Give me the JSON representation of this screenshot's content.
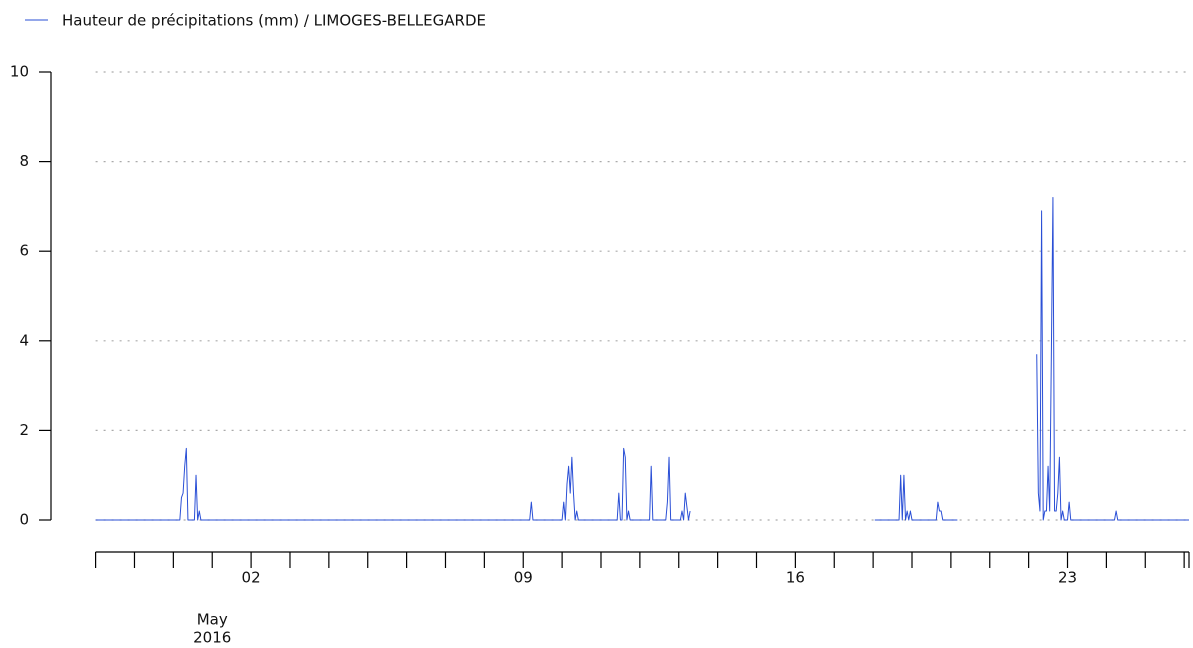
{
  "chart_data": {
    "type": "line",
    "series": [
      {
        "name": "Hauteur de précipitations (mm) / LIMOGES-BELLEGARDE",
        "color": "#2a4fd6",
        "x": [
          "2016-04-28 00:00",
          "2016-04-30 04:00",
          "2016-04-30 05:00",
          "2016-04-30 06:00",
          "2016-04-30 07:00",
          "2016-04-30 08:00",
          "2016-04-30 09:00",
          "2016-04-30 13:00",
          "2016-04-30 14:00",
          "2016-04-30 15:00",
          "2016-04-30 16:00",
          "2016-04-30 17:00",
          "2016-05-09 04:00",
          "2016-05-09 05:00",
          "2016-05-09 06:00",
          "2016-05-10 00:00",
          "2016-05-10 01:00",
          "2016-05-10 02:00",
          "2016-05-10 03:00",
          "2016-05-10 04:00",
          "2016-05-10 05:00",
          "2016-05-10 06:00",
          "2016-05-10 07:00",
          "2016-05-10 08:00",
          "2016-05-10 09:00",
          "2016-05-10 10:00",
          "2016-05-11 10:00",
          "2016-05-11 11:00",
          "2016-05-11 12:00",
          "2016-05-11 13:00",
          "2016-05-11 14:00",
          "2016-05-11 15:00",
          "2016-05-11 16:00",
          "2016-05-11 17:00",
          "2016-05-11 18:00",
          "2016-05-12 06:00",
          "2016-05-12 07:00",
          "2016-05-12 08:00",
          "2016-05-12 16:00",
          "2016-05-12 17:00",
          "2016-05-12 18:00",
          "2016-05-12 19:00",
          "2016-05-13 01:00",
          "2016-05-13 02:00",
          "2016-05-13 03:00",
          "2016-05-13 04:00",
          "2016-05-13 05:00",
          "2016-05-13 06:00",
          "2016-05-13 07:00",
          "2016-05-13 08:00",
          "2016-05-18 01:00",
          "2016-05-18 16:00",
          "2016-05-18 17:00",
          "2016-05-18 18:00",
          "2016-05-18 19:00",
          "2016-05-18 20:00",
          "2016-05-18 21:00",
          "2016-05-18 22:00",
          "2016-05-18 23:00",
          "2016-05-19 00:00",
          "2016-05-19 15:00",
          "2016-05-19 16:00",
          "2016-05-19 17:00",
          "2016-05-19 18:00",
          "2016-05-19 19:00",
          "2016-05-20 04:00",
          "2016-05-20 05:00",
          "2016-05-22 05:00",
          "2016-05-22 06:00",
          "2016-05-22 07:00",
          "2016-05-22 08:00",
          "2016-05-22 09:00",
          "2016-05-22 10:00",
          "2016-05-22 11:00",
          "2016-05-22 12:00",
          "2016-05-22 13:00",
          "2016-05-22 14:00",
          "2016-05-22 15:00",
          "2016-05-22 16:00",
          "2016-05-22 17:00",
          "2016-05-22 18:00",
          "2016-05-22 19:00",
          "2016-05-22 20:00",
          "2016-05-22 21:00",
          "2016-05-22 22:00",
          "2016-05-23 00:00",
          "2016-05-23 01:00",
          "2016-05-23 02:00",
          "2016-05-24 05:00",
          "2016-05-24 06:00",
          "2016-05-24 07:00",
          "2016-05-26 03:00"
        ],
        "values": [
          0,
          0,
          0.5,
          0.6,
          1.2,
          1.6,
          0,
          0,
          1.0,
          0,
          0.2,
          0,
          0,
          0.4,
          0,
          0,
          0.4,
          0,
          0.8,
          1.2,
          0.6,
          1.4,
          0.6,
          0,
          0.2,
          0,
          0,
          0.6,
          0,
          0,
          1.6,
          1.4,
          0,
          0.2,
          0,
          0,
          1.2,
          0,
          0,
          0.4,
          1.4,
          0,
          0,
          0.2,
          0,
          0.6,
          0.3,
          0,
          0.2,
          null,
          0,
          0,
          1.0,
          0,
          1.0,
          0,
          0.2,
          0,
          0.2,
          0,
          0,
          0.4,
          0.2,
          0.2,
          0,
          0,
          null,
          3.7,
          0.6,
          0.2,
          6.9,
          0,
          0.2,
          0.2,
          1.2,
          0.2,
          3.6,
          7.2,
          0.2,
          0.2,
          0.6,
          1.4,
          0,
          0.2,
          0,
          0,
          0.4,
          0,
          0,
          0.2,
          0,
          0
        ]
      }
    ],
    "xlim": [
      "2016-04-28 00:00",
      "2016-05-26 03:00"
    ],
    "xticks": [
      {
        "value": "2016-05-02",
        "label": "02"
      },
      {
        "value": "2016-05-09",
        "label": "09"
      },
      {
        "value": "2016-05-16",
        "label": "16"
      },
      {
        "value": "2016-05-23",
        "label": "23"
      }
    ],
    "xminorticks": [
      "2016-04-28",
      "2016-04-29",
      "2016-04-30",
      "2016-05-01",
      "2016-05-02",
      "2016-05-03",
      "2016-05-04",
      "2016-05-05",
      "2016-05-06",
      "2016-05-07",
      "2016-05-08",
      "2016-05-09",
      "2016-05-10",
      "2016-05-11",
      "2016-05-12",
      "2016-05-13",
      "2016-05-14",
      "2016-05-15",
      "2016-05-16",
      "2016-05-17",
      "2016-05-18",
      "2016-05-19",
      "2016-05-20",
      "2016-05-21",
      "2016-05-22",
      "2016-05-23",
      "2016-05-24",
      "2016-05-25",
      "2016-05-26"
    ],
    "x_axis_label": [
      "May",
      "2016"
    ],
    "ylim": [
      0,
      10
    ],
    "yticks": [
      0,
      2,
      4,
      6,
      8,
      10
    ],
    "grid": true,
    "legend": "top-left"
  }
}
